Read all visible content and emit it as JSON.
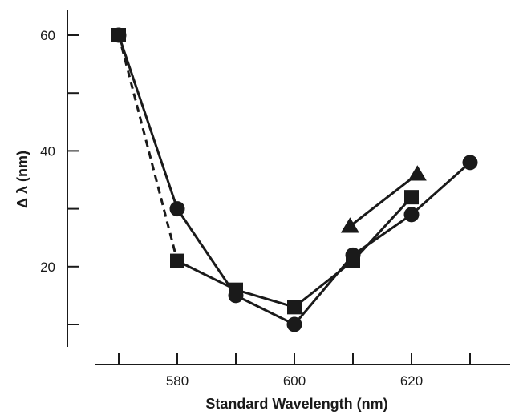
{
  "chart_data": {
    "type": "line",
    "title": "",
    "xlabel": "Standard Wavelength (nm)",
    "ylabel": "Δ λ (nm)",
    "xlim": [
      562,
      634
    ],
    "ylim": [
      4,
      65
    ],
    "xticks": [
      570,
      580,
      590,
      600,
      610,
      620,
      630
    ],
    "xtick_labels": [
      "",
      "580",
      "",
      "600",
      "",
      "620",
      ""
    ],
    "yticks": [
      10,
      20,
      30,
      40,
      50,
      60
    ],
    "ytick_labels": [
      "",
      "20",
      "",
      "40",
      "",
      "60"
    ],
    "grid": false,
    "legend": "none",
    "series": [
      {
        "marker": "circle",
        "line": "solid",
        "color": "#1a1a1a",
        "x": [
          570,
          580,
          590,
          600,
          610,
          620,
          630
        ],
        "y": [
          60,
          30,
          15,
          10,
          22,
          29,
          38
        ]
      },
      {
        "marker": "square",
        "line": "solid",
        "color": "#1a1a1a",
        "x": [
          580,
          590,
          600,
          610,
          620
        ],
        "y": [
          21,
          16,
          13,
          21,
          32
        ]
      },
      {
        "marker": "none",
        "line": "dashed",
        "color": "#1a1a1a",
        "x": [
          570,
          580
        ],
        "y": [
          60,
          21
        ]
      },
      {
        "marker": "square",
        "line": "none",
        "color": "#1a1a1a",
        "x": [
          570
        ],
        "y": [
          60
        ]
      },
      {
        "marker": "triangle",
        "line": "solid",
        "color": "#1a1a1a",
        "x": [
          609.5,
          621
        ],
        "y": [
          27,
          36
        ]
      }
    ]
  }
}
